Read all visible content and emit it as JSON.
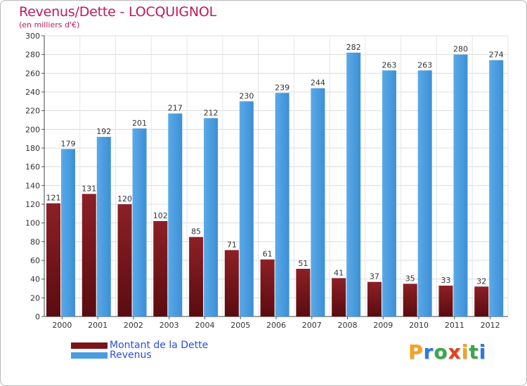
{
  "header": {
    "title": "Revenus/Dette - LOCQUIGNOL",
    "subtitle": "(en milliers d'€)"
  },
  "legend": {
    "debt_label": "Montant de la Dette",
    "revenue_label": "Revenus"
  },
  "logo": {
    "text": "Proxiti",
    "letters": [
      "P",
      "r",
      "o",
      "x",
      "i",
      "t",
      "i"
    ],
    "letter_colors": [
      "#f5a31a",
      "#2b7bd9",
      "#3aa648",
      "#e63e1c",
      "#f5a31a",
      "#3aa648",
      "#2b7bd9"
    ]
  },
  "colors": {
    "debt": "#7a1418",
    "revenue": "#4a9de0",
    "title": "#c2185b",
    "legend_text": "#2b4fd9"
  },
  "chart_data": {
    "type": "bar",
    "title": "Revenus/Dette - LOCQUIGNOL",
    "subtitle": "(en milliers d'€)",
    "xlabel": "",
    "ylabel": "",
    "ylim": [
      0,
      300
    ],
    "yticks": [
      0,
      20,
      40,
      60,
      80,
      100,
      120,
      140,
      160,
      180,
      200,
      220,
      240,
      260,
      280,
      300
    ],
    "grid": true,
    "legend_position": "bottom-left",
    "categories": [
      "2000",
      "2001",
      "2002",
      "2003",
      "2004",
      "2005",
      "2006",
      "2007",
      "2008",
      "2009",
      "2010",
      "2011",
      "2012"
    ],
    "series": [
      {
        "name": "Montant de la Dette",
        "values": [
          121,
          131,
          120,
          102,
          85,
          71,
          61,
          51,
          41,
          37,
          35,
          33,
          32
        ]
      },
      {
        "name": "Revenus",
        "values": [
          179,
          192,
          201,
          217,
          212,
          230,
          239,
          244,
          282,
          263,
          263,
          280,
          274
        ]
      }
    ]
  }
}
